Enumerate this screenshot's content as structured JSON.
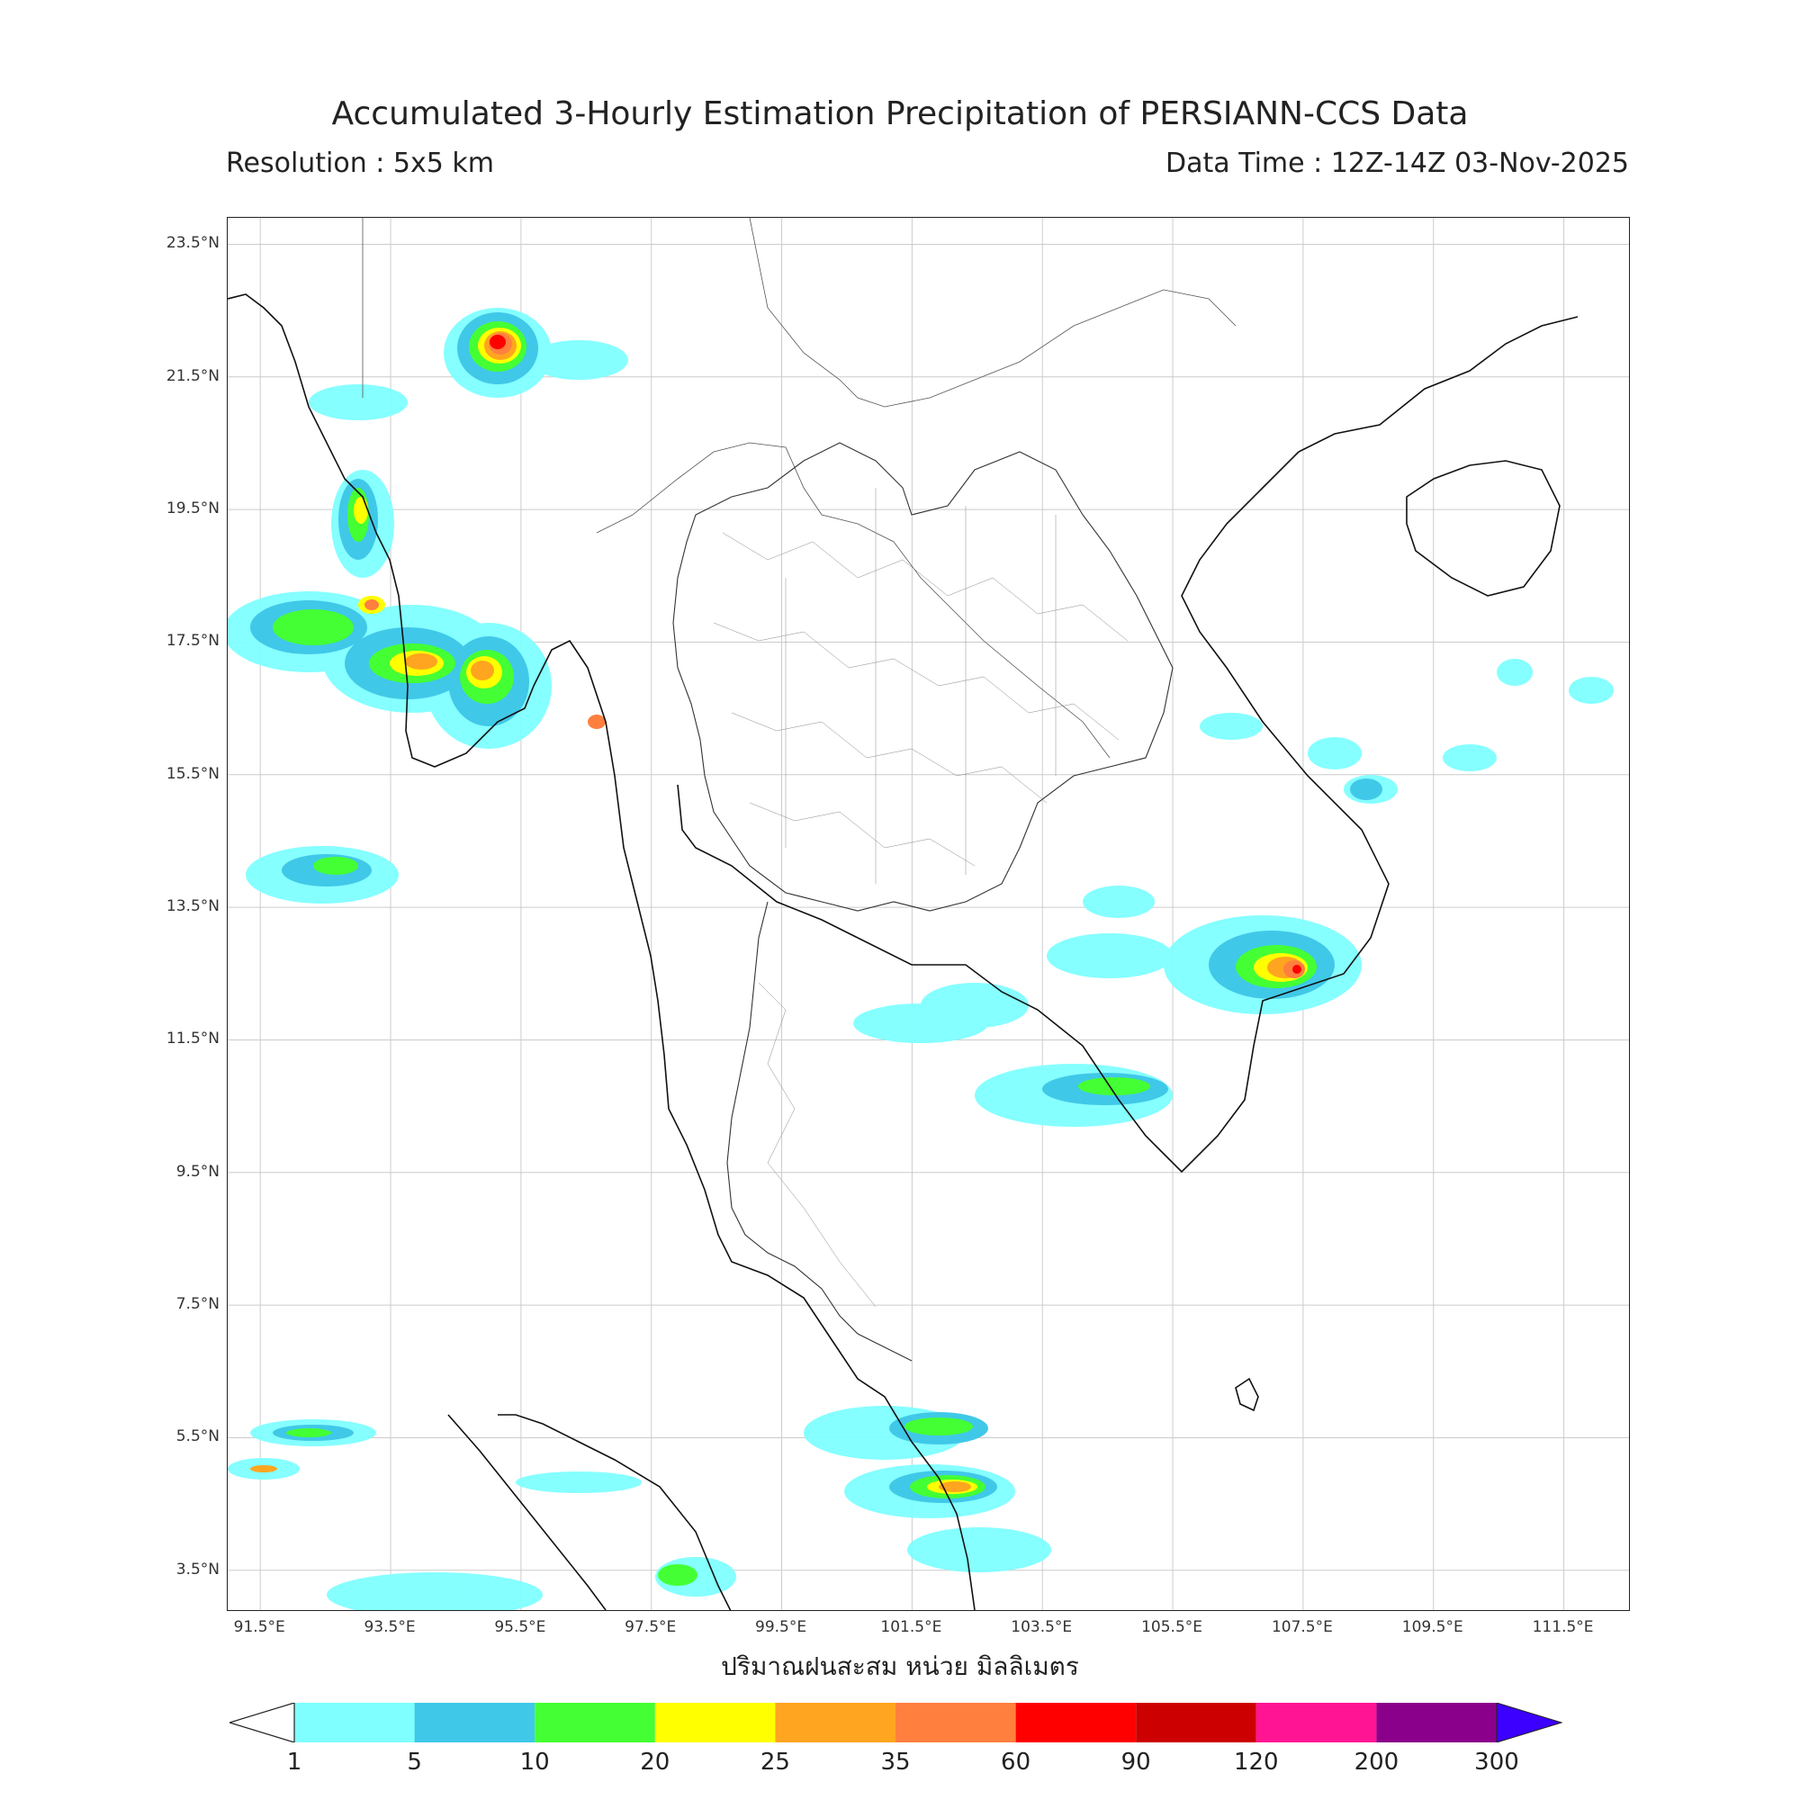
{
  "title": "Accumulated 3-Hourly Estimation Precipitation of PERSIANN-CCS Data",
  "resolution": "Resolution : 5x5 km",
  "data_time": "Data Time : 12Z-14Z 03-Nov-2025",
  "x_axis_label": "ปริมาณฝนสะสม หน่วย มิลลิเมตร",
  "map_extent": {
    "lon_min": 91.0,
    "lon_max": 112.5,
    "lat_min": 2.9,
    "lat_max": 23.9
  },
  "lat_ticks": [
    "23.5°N",
    "21.5°N",
    "19.5°N",
    "17.5°N",
    "15.5°N",
    "13.5°N",
    "11.5°N",
    "9.5°N",
    "7.5°N",
    "5.5°N",
    "3.5°N"
  ],
  "lon_ticks": [
    "91.5°E",
    "93.5°E",
    "95.5°E",
    "97.5°E",
    "99.5°E",
    "101.5°E",
    "103.5°E",
    "105.5°E",
    "107.5°E",
    "109.5°E",
    "111.5°E"
  ],
  "colorbar": {
    "ticks": [
      "1",
      "5",
      "10",
      "20",
      "25",
      "35",
      "60",
      "90",
      "120",
      "200",
      "300"
    ],
    "colors": [
      "#7fffff",
      "#40c8e8",
      "#44ff33",
      "#ffff00",
      "#ffa51f",
      "#ff7f3f",
      "#ff0000",
      "#cc0000",
      "#ff1493",
      "#8b008b"
    ],
    "over_color": "#3b00ff",
    "under_color": "#ffffff"
  }
}
